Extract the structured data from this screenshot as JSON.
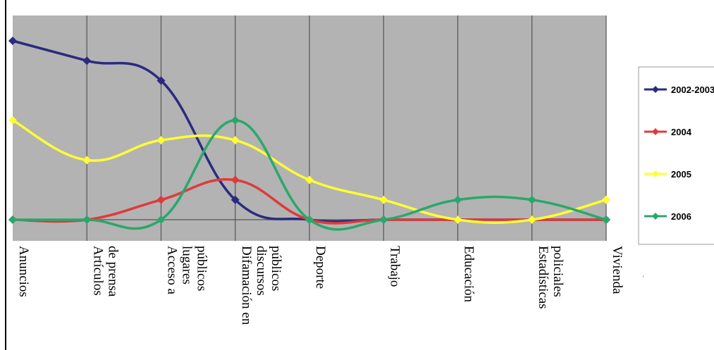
{
  "chart_data": {
    "type": "line",
    "title": "",
    "xlabel": "",
    "ylabel": "",
    "ylim": [
      0,
      9
    ],
    "grid": "vertical",
    "legend_position": "right",
    "background": "#b3b3b3",
    "categories": [
      [
        "Anuncios"
      ],
      [
        "Artículos",
        "de prensa"
      ],
      [
        "Acceso a",
        "lugares",
        "públicos"
      ],
      [
        "Difamación en",
        "discursos",
        "públicos"
      ],
      [
        "Deporte"
      ],
      [
        "Trabajo"
      ],
      [
        "Educación"
      ],
      [
        "Estadísticas",
        "policiales"
      ],
      [
        "Vivienda"
      ]
    ],
    "series": [
      {
        "name": "2002-2003",
        "color": "#2b2a80",
        "values": [
          9.0,
          8.0,
          7.0,
          1.0,
          0.0,
          0.0,
          0.0,
          0.0,
          0.0
        ]
      },
      {
        "name": "2004",
        "color": "#dd3b3b",
        "values": [
          0.0,
          0.0,
          1.0,
          2.0,
          0.0,
          0.0,
          0.0,
          0.0,
          0.0
        ]
      },
      {
        "name": "2005",
        "color": "#ffff33",
        "values": [
          5.0,
          3.0,
          4.0,
          4.0,
          2.0,
          1.0,
          0.0,
          0.0,
          1.0
        ]
      },
      {
        "name": "2006",
        "color": "#2aa76b",
        "values": [
          0.0,
          0.0,
          0.0,
          5.0,
          0.0,
          0.0,
          1.0,
          1.0,
          0.0
        ]
      }
    ]
  }
}
